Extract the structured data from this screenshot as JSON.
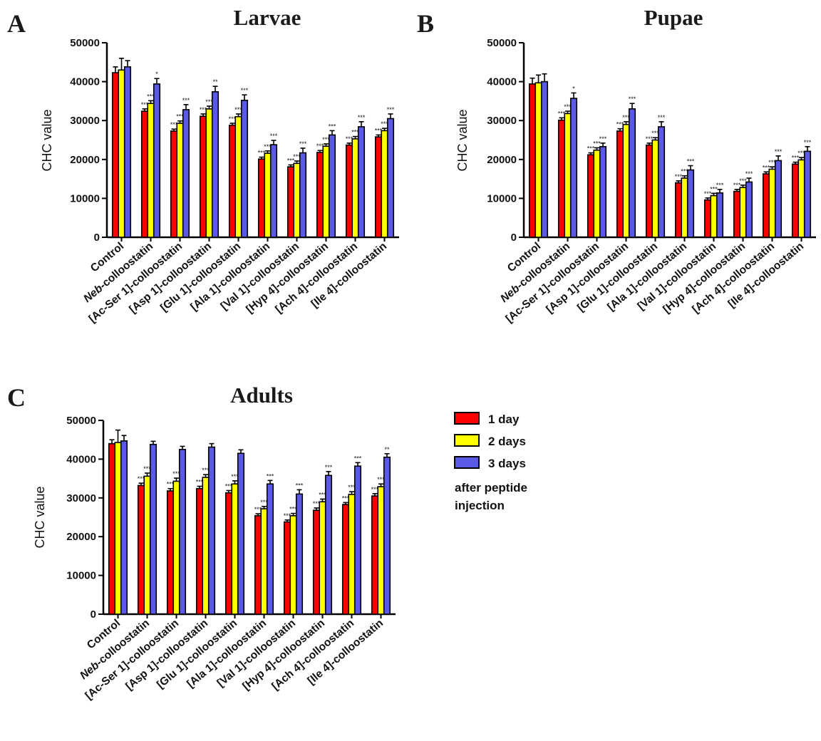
{
  "legend": {
    "items": [
      {
        "label": "1 day",
        "color": "#ff0000"
      },
      {
        "label": "2 days",
        "color": "#ffff00"
      },
      {
        "label": "3 days",
        "color": "#5a5ae6"
      }
    ],
    "note_line1": "after peptide",
    "note_line2": "injection"
  },
  "chart_data": [
    {
      "panel": "A",
      "type": "bar",
      "title": "Larvae",
      "ylabel": "CHC value",
      "ylim": [
        0,
        50000
      ],
      "yticks": [
        0,
        10000,
        20000,
        30000,
        40000,
        50000
      ],
      "categories": [
        {
          "italic": "",
          "text": "Control"
        },
        {
          "italic": "Neb",
          "text": "-colloostatin"
        },
        {
          "italic": "",
          "text": "[Ac-Ser 1]-colloostatin"
        },
        {
          "italic": "",
          "text": "[Asp 1]-colloostatin"
        },
        {
          "italic": "",
          "text": "[Glu 1]-colloostatin"
        },
        {
          "italic": "",
          "text": "[Ala 1]-colloostatin"
        },
        {
          "italic": "",
          "text": "[Val 1]-colloostatin"
        },
        {
          "italic": "",
          "text": "[Hyp 4]-colloostatin"
        },
        {
          "italic": "",
          "text": "[Ach 4]-colloostatin"
        },
        {
          "italic": "",
          "text": "[Ile 4]-colloostatin"
        }
      ],
      "series": [
        {
          "name": "1 day",
          "values": [
            42300,
            32400,
            27300,
            31100,
            28800,
            20100,
            18100,
            21800,
            23700,
            25800
          ],
          "errors": [
            1500,
            600,
            500,
            600,
            500,
            500,
            500,
            500,
            500,
            500
          ],
          "significance": [
            "",
            "***",
            "***",
            "***",
            "***",
            "***",
            "***",
            "***",
            "***",
            "***"
          ]
        },
        {
          "name": "2 days",
          "values": [
            43000,
            34400,
            29300,
            33000,
            31000,
            21600,
            19000,
            23400,
            25300,
            27400
          ],
          "errors": [
            3000,
            700,
            600,
            700,
            700,
            600,
            600,
            600,
            600,
            600
          ],
          "significance": [
            "",
            "***",
            "***",
            "***",
            "***",
            "***",
            "***",
            "***",
            "***",
            "***"
          ]
        },
        {
          "name": "3 days",
          "values": [
            43800,
            39400,
            32800,
            37400,
            35200,
            23800,
            21700,
            26300,
            28400,
            30500
          ],
          "errors": [
            1600,
            1400,
            1300,
            1400,
            1400,
            1100,
            1200,
            1100,
            1300,
            1200
          ],
          "significance": [
            "",
            "*",
            "***",
            "**",
            "***",
            "***",
            "***",
            "***",
            "***",
            "***"
          ]
        }
      ]
    },
    {
      "panel": "B",
      "type": "bar",
      "title": "Pupae",
      "ylabel": "CHC value",
      "ylim": [
        0,
        50000
      ],
      "yticks": [
        0,
        10000,
        20000,
        30000,
        40000,
        50000
      ],
      "categories": [
        {
          "italic": "",
          "text": "Control"
        },
        {
          "italic": "Neb",
          "text": "-colloostatin"
        },
        {
          "italic": "",
          "text": "[Ac-Ser 1]-colloostatin"
        },
        {
          "italic": "",
          "text": "[Asp 1]-colloostatin"
        },
        {
          "italic": "",
          "text": "[Glu 1]-colloostatin"
        },
        {
          "italic": "",
          "text": "[Ala 1]-colloostatin"
        },
        {
          "italic": "",
          "text": "[Val 1]-colloostatin"
        },
        {
          "italic": "",
          "text": "[Hyp 4]-colloostatin"
        },
        {
          "italic": "",
          "text": "[Ach 4]-colloostatin"
        },
        {
          "italic": "",
          "text": "[Ile 4]-colloostatin"
        }
      ],
      "series": [
        {
          "name": "1 day",
          "values": [
            39400,
            30100,
            21200,
            27300,
            23700,
            14000,
            9600,
            11800,
            16300,
            18800
          ],
          "errors": [
            1500,
            600,
            500,
            600,
            500,
            500,
            500,
            500,
            500,
            500
          ],
          "significance": [
            "",
            "***",
            "***",
            "***",
            "***",
            "***",
            "***",
            "***",
            "***",
            "***"
          ]
        },
        {
          "name": "2 days",
          "values": [
            39700,
            31800,
            22400,
            29000,
            25000,
            15200,
            10700,
            12800,
            17500,
            19900
          ],
          "errors": [
            2000,
            600,
            600,
            700,
            600,
            600,
            600,
            600,
            600,
            600
          ],
          "significance": [
            "",
            "***",
            "***",
            "***",
            "***",
            "***",
            "***",
            "***",
            "***",
            "***"
          ]
        },
        {
          "name": "3 days",
          "values": [
            40000,
            35700,
            23300,
            33000,
            28400,
            17300,
            11400,
            14200,
            19700,
            22100
          ],
          "errors": [
            2000,
            1400,
            900,
            1400,
            1300,
            1100,
            900,
            1000,
            1200,
            1200
          ],
          "significance": [
            "",
            "*",
            "***",
            "***",
            "***",
            "***",
            "***",
            "***",
            "***",
            "***"
          ]
        }
      ]
    },
    {
      "panel": "C",
      "type": "bar",
      "title": "Adults",
      "ylabel": "CHC value",
      "ylim": [
        0,
        50000
      ],
      "yticks": [
        0,
        10000,
        20000,
        30000,
        40000,
        50000
      ],
      "categories": [
        {
          "italic": "",
          "text": "Control"
        },
        {
          "italic": "Neb",
          "text": "-colloostatin"
        },
        {
          "italic": "",
          "text": "[Ac-Ser 1]-colloostatin"
        },
        {
          "italic": "",
          "text": "[Asp 1]-colloostatin"
        },
        {
          "italic": "",
          "text": "[Glu 1]-colloostatin"
        },
        {
          "italic": "",
          "text": "[Ala 1]-colloostatin"
        },
        {
          "italic": "",
          "text": "[Val 1]-colloostatin"
        },
        {
          "italic": "",
          "text": "[Hyp 4]-colloostatin"
        },
        {
          "italic": "",
          "text": "[Ach 4]-colloostatin"
        },
        {
          "italic": "",
          "text": "[Ile 4]-colloostatin"
        }
      ],
      "series": [
        {
          "name": "1 day",
          "values": [
            44000,
            33200,
            31800,
            32400,
            31300,
            25400,
            23800,
            26800,
            28300,
            30500
          ],
          "errors": [
            1000,
            600,
            600,
            600,
            600,
            500,
            500,
            600,
            500,
            600
          ],
          "significance": [
            "",
            "***",
            "***",
            "***",
            "***",
            "***",
            "***",
            "***",
            "***",
            "***"
          ]
        },
        {
          "name": "2 days",
          "values": [
            44300,
            35600,
            34300,
            35300,
            33600,
            27200,
            25400,
            29000,
            30900,
            32900
          ],
          "errors": [
            3200,
            800,
            800,
            700,
            800,
            600,
            600,
            700,
            700,
            700
          ],
          "significance": [
            "",
            "***",
            "***",
            "***",
            "***",
            "***",
            "***",
            "***",
            "***",
            "***"
          ]
        },
        {
          "name": "3 days",
          "values": [
            44700,
            43800,
            42500,
            43100,
            41500,
            33600,
            31000,
            35800,
            38200,
            40500
          ],
          "errors": [
            1400,
            800,
            800,
            900,
            900,
            900,
            1100,
            1000,
            900,
            900
          ],
          "significance": [
            "",
            "",
            "",
            "",
            "",
            "***",
            "***",
            "***",
            "***",
            "**"
          ]
        }
      ]
    }
  ]
}
